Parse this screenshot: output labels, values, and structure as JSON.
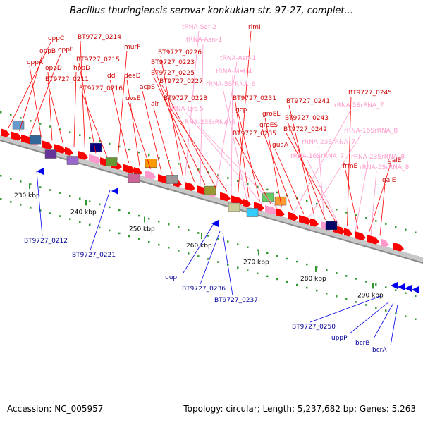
{
  "title": "Bacillus thuringiensis serovar konkukian str. 97-27, complet...",
  "footer": {
    "accession": "Accession: NC_005957",
    "topology": "Topology: circular; Length: 5,237,682 bp; Genes: 5,263"
  },
  "colors": {
    "forward_gene": "#ff0000",
    "forward_label": "#cc0000",
    "reverse_gene": "#0000ee",
    "reverse_label": "#000099",
    "rna": "#ff99cc",
    "rna_label": "#ff99cc",
    "backbone": "#999999",
    "tick": "#339933"
  },
  "scale_labels": [
    "230 kbp",
    "240 kbp",
    "250 kbp",
    "260 kbp",
    "270 kbp",
    "280 kbp",
    "290 kbp"
  ],
  "forward_labels": [
    "oppC",
    "oppB",
    "oppF",
    "oppA",
    "oppD",
    "BT9727_0211",
    "hppD",
    "BT9727_0214",
    "BT9727_0215",
    "BT9727_0216",
    "murF",
    "ddl",
    "deaD",
    "uvsE",
    "acpS",
    "alr",
    "BT9727_0226",
    "BT9727_0223",
    "BT9727_0225",
    "BT9727_0227",
    "BT9727_0228",
    "rimI",
    "BT9727_0231",
    "gcp",
    "BT9727_0235",
    "groEL",
    "groES",
    "guaA",
    "BT9727_0241",
    "BT9727_0243",
    "BT9727_0242",
    "BT9727_0245",
    "frmE",
    "galE",
    "galE"
  ],
  "rna_labels": [
    "tRNA-Ser-2",
    "tRNA-Asn-1",
    "tRNA-Asn-1",
    "tRNA-Met-4",
    "rRNA-5SrRNA_6",
    "tRNA-Lys-5",
    "rRNA-23SrRNA_6",
    "rRNA-5SrRNA_7",
    "rRNA-16SrRNA_8",
    "rRNA-23SrRNA_7",
    "rRNA-16SrRNA_7",
    "rRNA-23SrRNA_8",
    "rRNA-5SrRNA_8"
  ],
  "reverse_labels": [
    "BT9727_0212",
    "BT9727_0221",
    "uup",
    "BT9727_0236",
    "BT9727_0237",
    "BT9727_0250",
    "uppP",
    "bcrB",
    "bcrA"
  ]
}
